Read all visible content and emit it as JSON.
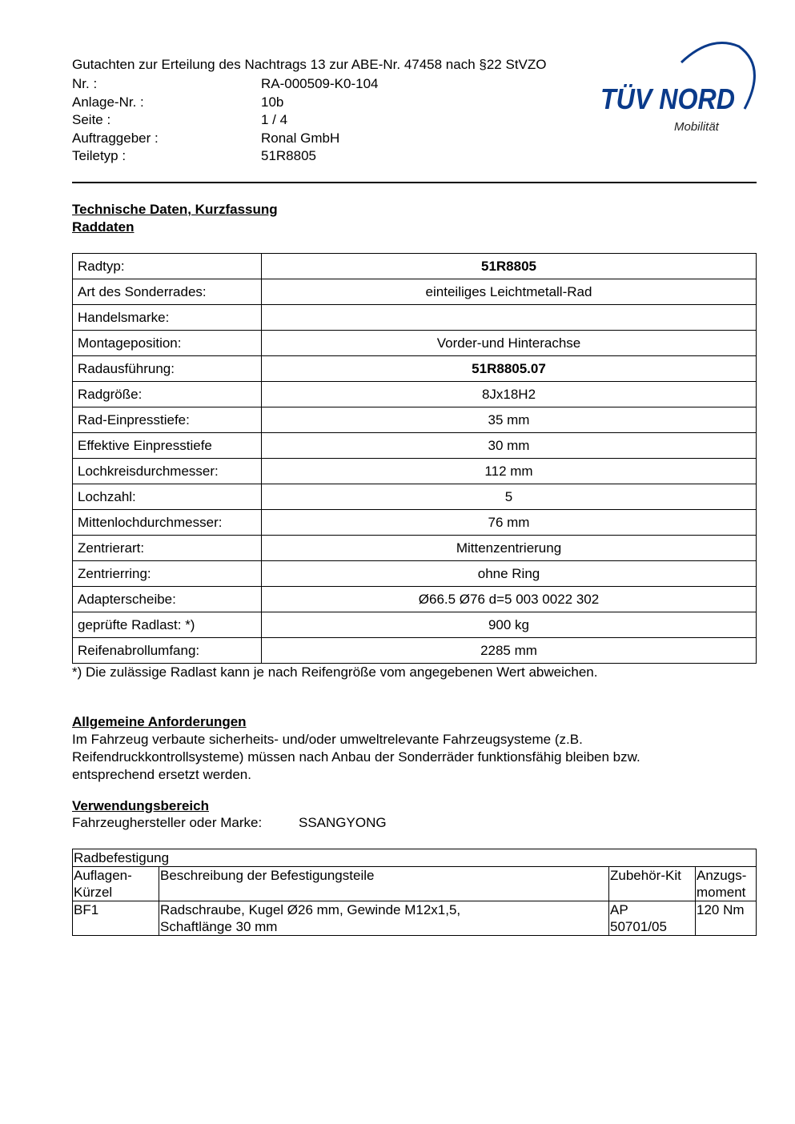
{
  "header": {
    "title": "Gutachten zur Erteilung des Nachtrags 13 zur ABE-Nr. 47458 nach §22 StVZO",
    "fields": [
      {
        "label": "Nr. :",
        "value": "RA-000509-K0-104"
      },
      {
        "label": "Anlage-Nr. :",
        "value": "10b"
      },
      {
        "label": "Seite :",
        "value": "1 / 4"
      },
      {
        "label": "Auftraggeber :",
        "value": "Ronal GmbH"
      },
      {
        "label": "Teiletyp :",
        "value": "51R8805"
      }
    ],
    "logo": {
      "text": "TÜV NORD",
      "subtitle": "Mobilität",
      "color": "#0a3a8a"
    }
  },
  "section1": {
    "heading": "Technische Daten, Kurzfassung",
    "subheading": "Raddaten"
  },
  "wheel_table": [
    {
      "key": "Radtyp:",
      "value": "51R8805",
      "bold": true
    },
    {
      "key": "Art des Sonderrades:",
      "value": "einteiliges Leichtmetall-Rad"
    },
    {
      "key": "Handelsmarke:",
      "value": ""
    },
    {
      "key": "Montageposition:",
      "value": "Vorder-und Hinterachse"
    },
    {
      "key": "Radausführung:",
      "value": "51R8805.07",
      "bold": true
    },
    {
      "key": "Radgröße:",
      "value": "8Jx18H2"
    },
    {
      "key": "Rad-Einpresstiefe:",
      "value": "35 mm"
    },
    {
      "key": "Effektive Einpresstiefe",
      "value": "30 mm"
    },
    {
      "key": "Lochkreisdurchmesser:",
      "value": "112 mm"
    },
    {
      "key": "Lochzahl:",
      "value": "5"
    },
    {
      "key": "Mittenlochdurchmesser:",
      "value": "76 mm"
    },
    {
      "key": "Zentrierart:",
      "value": "Mittenzentrierung"
    },
    {
      "key": "Zentrierring:",
      "value": "ohne Ring"
    },
    {
      "key": "Adapterscheibe:",
      "value": "Ø66.5  Ø76  d=5  003 0022 302"
    },
    {
      "key": "geprüfte Radlast: *)",
      "value": "900 kg"
    },
    {
      "key": "Reifenabrollumfang:",
      "value": "2285 mm"
    }
  ],
  "footnote": "*) Die zulässige Radlast kann je nach Reifengröße vom angegebenen Wert abweichen.",
  "section2": {
    "heading": "Allgemeine Anforderungen",
    "lines": [
      "Im Fahrzeug verbaute sicherheits- und/oder umweltrelevante Fahrzeugsysteme (z.B.",
      "Reifendruckkontrollsysteme) müssen nach Anbau der Sonderräder funktionsfähig bleiben bzw.",
      "entsprechend ersetzt werden."
    ]
  },
  "section3": {
    "heading": "Verwendungsbereich",
    "label": "Fahrzeughersteller oder Marke:",
    "value": "SSANGYONG"
  },
  "mount_table": {
    "title": "Radbefestigung",
    "headers": [
      [
        "Auflagen-",
        "Kürzel"
      ],
      [
        "Beschreibung der Befestigungsteile"
      ],
      [
        "Zubehör-Kit"
      ],
      [
        "Anzugs-",
        "moment"
      ]
    ],
    "rows": [
      [
        [
          "BF1"
        ],
        [
          "Radschraube, Kugel Ø26 mm, Gewinde M12x1,5,",
          "Schaftlänge 30 mm"
        ],
        [
          "AP",
          "50701/05"
        ],
        [
          "120 Nm"
        ]
      ]
    ]
  }
}
